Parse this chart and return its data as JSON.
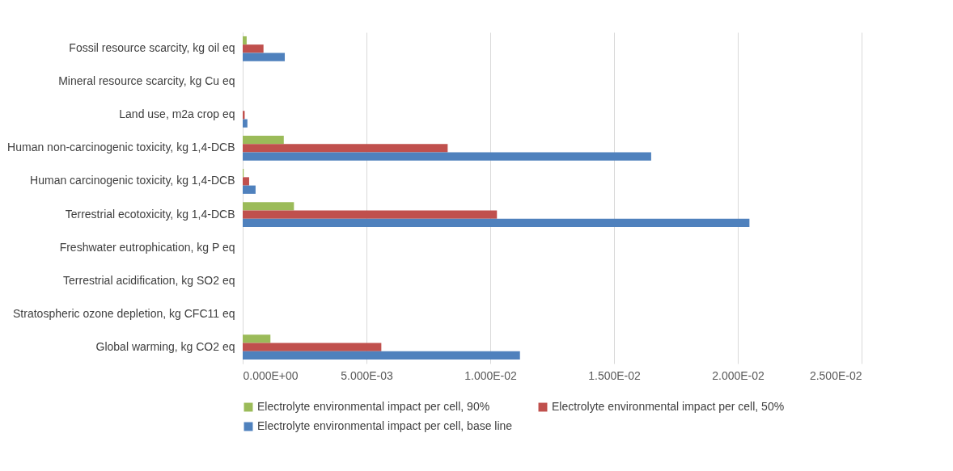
{
  "chart_data": {
    "type": "bar",
    "orientation": "horizontal",
    "categories": [
      "Fossil resource scarcity, kg oil eq",
      "Mineral resource scarcity, kg Cu eq",
      "Land use, m2a crop eq",
      "Human non-carcinogenic toxicity, kg 1,4-DCB",
      "Human carcinogenic toxicity, kg 1,4-DCB",
      "Terrestrial ecotoxicity, kg 1,4-DCB",
      "Freshwater eutrophication, kg P eq",
      "Terrestrial acidification, kg SO2 eq",
      "Stratospheric ozone depletion, kg CFC11 eq",
      "Global warming, kg CO2 eq"
    ],
    "series": [
      {
        "name": "Electrolyte environmental impact per cell, 90%",
        "color": "#9bbb59",
        "values": [
          0.00016,
          0,
          0,
          0.00166,
          4e-05,
          0.00207,
          0,
          0,
          0,
          0.00112
        ]
      },
      {
        "name": "Electrolyte environmental impact per cell, 50%",
        "color": "#c0504d",
        "values": [
          0.00084,
          0,
          8e-05,
          0.00828,
          0.00026,
          0.01027,
          0,
          0,
          0,
          0.0056
        ]
      },
      {
        "name": "Electrolyte environmental impact per cell, base line",
        "color": "#4f81bd",
        "values": [
          0.0017,
          0,
          0.00019,
          0.0165,
          0.00052,
          0.02047,
          0,
          0,
          0,
          0.0112
        ]
      }
    ],
    "xlim": [
      0,
      0.025
    ],
    "xticks": [
      {
        "value": 0,
        "label": "0.000E+00"
      },
      {
        "value": 0.005,
        "label": "5.000E-03"
      },
      {
        "value": 0.01,
        "label": "1.000E-02"
      },
      {
        "value": 0.015,
        "label": "1.500E-02"
      },
      {
        "value": 0.02,
        "label": "2.000E-02"
      },
      {
        "value": 0.025,
        "label": "2.500E-02"
      }
    ],
    "grid": "x",
    "legend": "bottom"
  }
}
